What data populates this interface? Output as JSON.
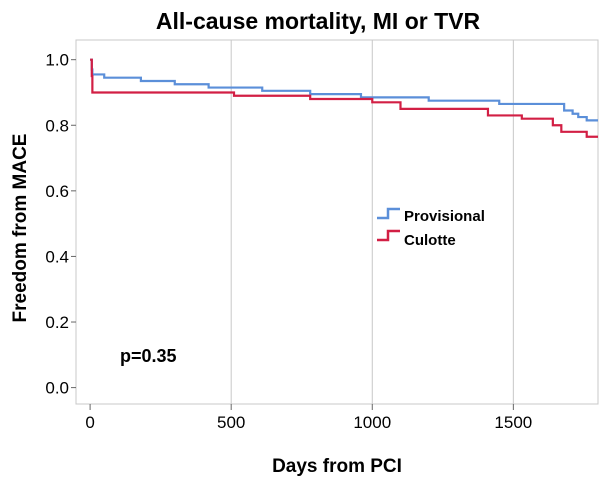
{
  "chart_data": {
    "type": "line",
    "step": true,
    "title": "All-cause mortality, MI or TVR",
    "xlabel": "Days from PCI",
    "ylabel": "Freedom from MACE",
    "xlim": [
      -50,
      1800
    ],
    "ylim": [
      -0.05,
      1.06
    ],
    "x_ticks": [
      0,
      500,
      1000,
      1500
    ],
    "y_ticks": [
      0.0,
      0.2,
      0.4,
      0.6,
      0.8,
      1.0
    ],
    "x_tick_labels": [
      "0",
      "500",
      "1000",
      "1500"
    ],
    "y_tick_labels": [
      "0.0",
      "0.2",
      "0.4",
      "0.6",
      "0.8",
      "1.0"
    ],
    "grid": true,
    "legend_position": "center-right",
    "series": [
      {
        "name": "Provisional",
        "color": "#5b8fd9",
        "x": [
          0,
          6,
          8,
          50,
          180,
          300,
          420,
          610,
          780,
          960,
          1200,
          1450,
          1680,
          1710,
          1730,
          1760,
          1800
        ],
        "y": [
          1.0,
          0.97,
          0.955,
          0.945,
          0.935,
          0.925,
          0.915,
          0.905,
          0.895,
          0.885,
          0.875,
          0.865,
          0.845,
          0.835,
          0.825,
          0.815,
          0.815
        ]
      },
      {
        "name": "Culotte",
        "color": "#d21f44",
        "x": [
          0,
          6,
          8,
          510,
          780,
          1000,
          1100,
          1410,
          1530,
          1640,
          1670,
          1760,
          1800
        ],
        "y": [
          1.0,
          0.95,
          0.9,
          0.89,
          0.88,
          0.87,
          0.85,
          0.83,
          0.82,
          0.8,
          0.78,
          0.765,
          0.765
        ]
      }
    ],
    "annotations": [
      "p=0.35"
    ]
  }
}
